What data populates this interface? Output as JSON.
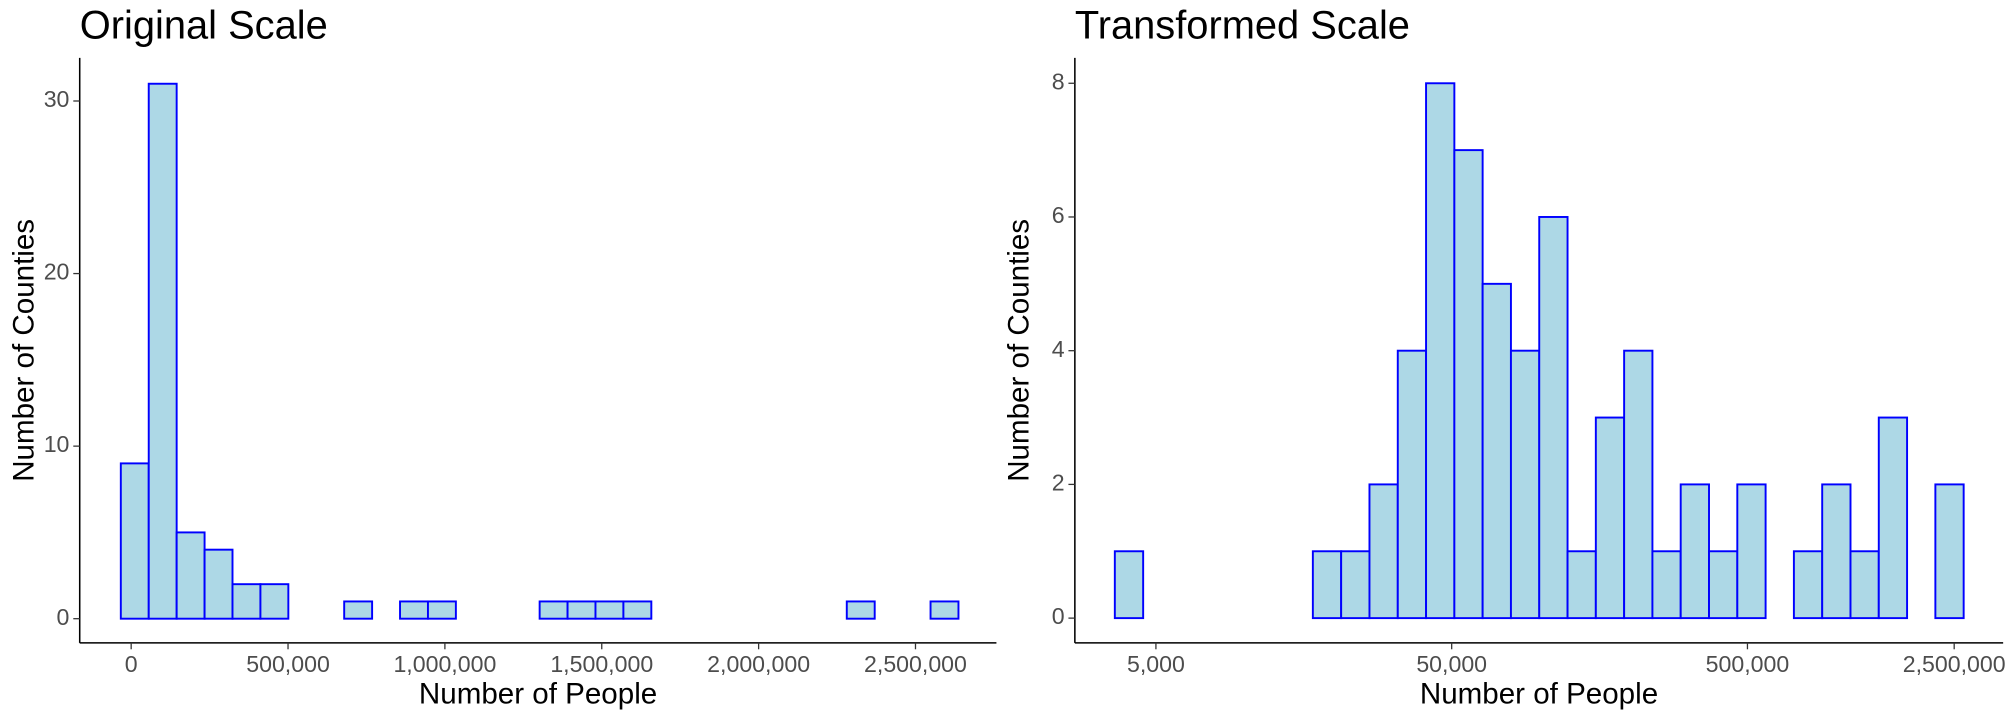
{
  "chart_data": [
    {
      "type": "histogram",
      "title": "Original Scale",
      "x_label": "Number of People",
      "y_label": "Number of Counties",
      "fill": "#add8e6",
      "edge_color": "#0000ff",
      "log_x": false,
      "bins": [
        -33000,
        56000,
        145000,
        234000,
        323000,
        412000,
        501000,
        590000,
        679000,
        768000,
        857000,
        946000,
        1035000,
        1124000,
        1213000,
        1302000,
        1391000,
        1480000,
        1569000,
        1658000,
        1747000,
        1836000,
        1925000,
        2014000,
        2103000,
        2192000,
        2281000,
        2370000,
        2459000,
        2548000,
        2637000
      ],
      "counts": [
        9,
        31,
        5,
        4,
        2,
        2,
        0,
        0,
        1,
        0,
        1,
        1,
        0,
        0,
        0,
        1,
        1,
        1,
        1,
        0,
        0,
        0,
        0,
        0,
        0,
        0,
        1,
        0,
        0,
        1
      ],
      "xlim": [
        -164000,
        2758000
      ],
      "xticks": [
        0,
        {
          "value": 500000,
          "label": "500,000"
        },
        {
          "value": 1000000,
          "label": "1,000,000"
        },
        {
          "value": 1500000,
          "label": "1,500,000"
        },
        {
          "value": 2000000,
          "label": "2,000,000"
        },
        {
          "value": 2500000,
          "label": "2,500,000"
        }
      ],
      "ylim": [
        -1.4,
        32.5
      ],
      "yticks": [
        0,
        10,
        20,
        30
      ]
    },
    {
      "type": "histogram",
      "title": "Transformed Scale",
      "x_label": "Number of People",
      "y_label": "Number of Counties",
      "fill": "#add8e6",
      "edge_color": "#0000ff",
      "log_x": true,
      "bins": [
        3631,
        4527,
        5642,
        7031,
        8762,
        10922,
        13614,
        16965,
        21146,
        26363,
        32862,
        40955,
        51050,
        63621,
        79304,
        98855,
        123228,
        153581,
        191426,
        238604,
        297368,
        370681,
        462052,
        575890,
        717794,
        894775,
        1115308,
        1389953,
        1732502,
        2159400,
        2691535
      ],
      "counts": [
        1,
        0,
        0,
        0,
        0,
        0,
        0,
        1,
        1,
        2,
        4,
        8,
        7,
        5,
        4,
        6,
        1,
        3,
        4,
        1,
        2,
        1,
        2,
        0,
        1,
        2,
        1,
        3,
        0,
        2
      ],
      "xlim": [
        2660,
        3660000
      ],
      "xticks": [
        {
          "value": 5000,
          "label": "5,000"
        },
        {
          "value": 50000,
          "label": "50,000"
        },
        {
          "value": 500000,
          "label": "500,000"
        },
        {
          "value": 2500000,
          "label": "2,500,000"
        }
      ],
      "ylim": [
        -0.37,
        8.38
      ],
      "yticks": [
        0,
        2,
        4,
        6,
        8
      ]
    }
  ]
}
